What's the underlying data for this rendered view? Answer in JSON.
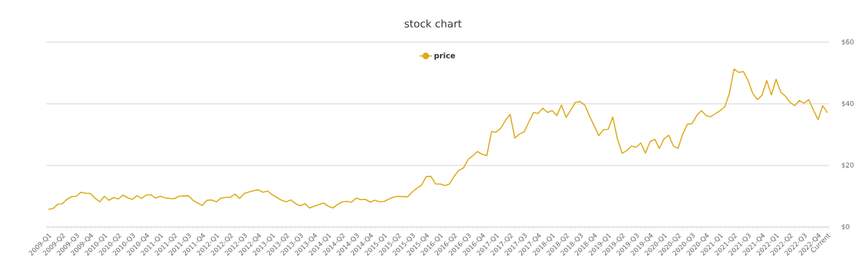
{
  "chart_data": {
    "type": "line",
    "title": "stock chart",
    "categories": [
      "2009-Q1",
      null,
      null,
      "2009-Q2",
      null,
      null,
      "2009-Q3",
      null,
      null,
      "2009-Q4",
      null,
      null,
      "2010-Q1",
      null,
      null,
      "2010-Q2",
      null,
      null,
      "2010-Q3",
      null,
      null,
      "2010-Q4",
      null,
      null,
      "2011-Q1",
      null,
      null,
      "2011-Q2",
      null,
      null,
      "2011-Q3",
      null,
      null,
      "2011-Q4",
      null,
      null,
      "2012-Q1",
      null,
      null,
      "2012-Q2",
      null,
      null,
      "2012-Q3",
      null,
      null,
      "2012-Q4",
      null,
      null,
      "2013-Q1",
      null,
      null,
      "2013-Q2",
      null,
      null,
      "2013-Q3",
      null,
      null,
      "2013-Q4",
      null,
      null,
      "2014-Q1",
      null,
      null,
      "2014-Q2",
      null,
      null,
      "2014-Q3",
      null,
      null,
      "2014-Q4",
      null,
      null,
      "2015-Q1",
      null,
      null,
      "2015-Q2",
      null,
      null,
      "2015-Q3",
      null,
      null,
      "2015-Q4",
      null,
      null,
      "2016-Q1",
      null,
      null,
      "2016-Q2",
      null,
      null,
      "2016-Q3",
      null,
      null,
      "2016-Q4",
      null,
      null,
      "2017-Q1",
      null,
      null,
      "2017-Q2",
      null,
      null,
      "2017-Q3",
      null,
      null,
      "2017-Q4",
      null,
      null,
      "2018-Q1",
      null,
      null,
      "2018-Q2",
      null,
      null,
      "2018-Q3",
      null,
      null,
      "2018-Q4",
      null,
      null,
      "2019-Q1",
      null,
      null,
      "2019-Q2",
      null,
      null,
      "2019-Q3",
      null,
      null,
      "2019-Q4",
      null,
      null,
      "2020-Q1",
      null,
      null,
      "2020-Q2",
      null,
      null,
      "2020-Q3",
      null,
      null,
      "2020-Q4",
      null,
      null,
      "2021-Q1",
      null,
      null,
      "2021-Q2",
      null,
      null,
      "2021-Q3",
      null,
      null,
      "2021-Q4",
      null,
      null,
      "2022-Q1",
      null,
      null,
      "2022-Q2",
      null,
      null,
      "2022-Q3",
      null,
      null,
      "2022-Q4",
      null,
      "Current"
    ],
    "series": [
      {
        "name": "price",
        "color": "#dca914",
        "values": [
          5.8,
          6.0,
          7.4,
          7.6,
          9.0,
          9.9,
          10.0,
          11.3,
          11.0,
          10.9,
          9.4,
          8.2,
          10.0,
          8.7,
          9.6,
          9.1,
          10.4,
          9.5,
          9.0,
          10.2,
          9.3,
          10.4,
          10.5,
          9.4,
          10.0,
          9.5,
          9.3,
          9.2,
          10.0,
          10.1,
          10.2,
          8.7,
          7.8,
          7.0,
          8.7,
          8.8,
          8.2,
          9.4,
          9.6,
          9.7,
          10.7,
          9.3,
          10.9,
          11.4,
          11.8,
          12.1,
          11.3,
          11.7,
          10.5,
          9.6,
          8.7,
          8.2,
          8.8,
          7.6,
          6.9,
          7.6,
          6.2,
          6.8,
          7.3,
          7.8,
          6.8,
          6.2,
          7.3,
          8.2,
          8.3,
          8.1,
          9.4,
          8.9,
          9.0,
          8.1,
          8.7,
          8.2,
          8.3,
          9.1,
          9.7,
          10.0,
          9.9,
          9.8,
          11.4,
          12.6,
          13.6,
          16.4,
          16.5,
          14.0,
          14.0,
          13.5,
          14.0,
          16.5,
          18.4,
          19.2,
          22.0,
          23.2,
          24.5,
          23.6,
          23.2,
          31.0,
          30.8,
          32.1,
          34.7,
          36.5,
          28.9,
          30.2,
          30.9,
          34.1,
          37.2,
          36.9,
          38.6,
          37.2,
          37.8,
          36.2,
          39.6,
          35.6,
          38.0,
          40.5,
          40.7,
          39.6,
          36.1,
          32.9,
          29.7,
          31.6,
          31.7,
          35.7,
          28.6,
          24.0,
          24.8,
          26.3,
          25.9,
          27.3,
          24.0,
          27.8,
          28.5,
          25.5,
          28.7,
          29.8,
          26.3,
          25.6,
          30.2,
          33.4,
          33.6,
          36.2,
          37.8,
          36.2,
          35.8,
          36.8,
          37.8,
          39.0,
          43.4,
          51.3,
          50.2,
          50.5,
          47.6,
          43.4,
          41.4,
          42.8,
          47.6,
          42.9,
          48.0,
          43.8,
          42.5,
          40.5,
          39.4,
          41.1,
          40.2,
          41.4,
          38.0,
          34.9,
          39.4,
          37.1
        ]
      }
    ],
    "ylim": [
      0,
      60
    ],
    "yticks": [
      {
        "value": 0,
        "label": "$0"
      },
      {
        "value": 20,
        "label": "$20"
      },
      {
        "value": 40,
        "label": "$40"
      },
      {
        "value": 60,
        "label": "$60"
      }
    ],
    "grid": "y",
    "legend": "top",
    "line_style": "solid"
  }
}
